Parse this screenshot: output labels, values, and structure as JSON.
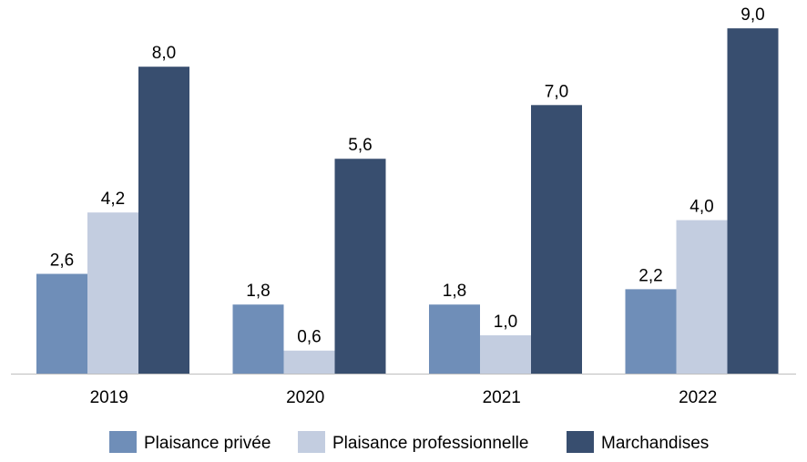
{
  "chart_data": {
    "type": "bar",
    "categories": [
      "2019",
      "2020",
      "2021",
      "2022"
    ],
    "series": [
      {
        "name": "Plaisance privée",
        "values": [
          2.6,
          1.8,
          1.8,
          2.2
        ],
        "labels": [
          "2,6",
          "1,8",
          "1,8",
          "2,2"
        ],
        "color": "#6f8eb8"
      },
      {
        "name": "Plaisance professionnelle",
        "values": [
          4.2,
          0.6,
          1.0,
          4.0
        ],
        "labels": [
          "4,2",
          "0,6",
          "1,0",
          "4,0"
        ],
        "color": "#c3cde0"
      },
      {
        "name": "Marchandises",
        "values": [
          8.0,
          5.6,
          7.0,
          9.0
        ],
        "labels": [
          "8,0",
          "5,6",
          "7,0",
          "9,0"
        ],
        "color": "#384e6f"
      }
    ],
    "ylim": [
      0,
      9.5
    ],
    "grid": false,
    "legend": "bottom"
  }
}
